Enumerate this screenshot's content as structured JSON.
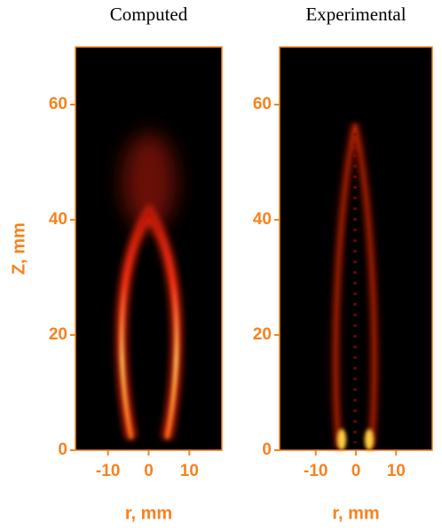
{
  "chart_data": [
    {
      "type": "heatmap",
      "title": "Computed",
      "xlabel": "r, mm",
      "ylabel": "Z, mm",
      "xlim": [
        -18,
        18
      ],
      "ylim": [
        0,
        70
      ],
      "xticks": [
        -10,
        0,
        10
      ],
      "yticks": [
        0,
        20,
        40,
        60
      ],
      "color": "#f7821e"
    },
    {
      "type": "heatmap",
      "title": "Experimental",
      "xlabel": "r, mm",
      "xlim": [
        -19,
        19
      ],
      "ylim": [
        0,
        70
      ],
      "xticks": [
        -10,
        0,
        10
      ],
      "yticks": [
        0,
        20,
        40,
        60
      ],
      "color": "#f7821e"
    }
  ]
}
